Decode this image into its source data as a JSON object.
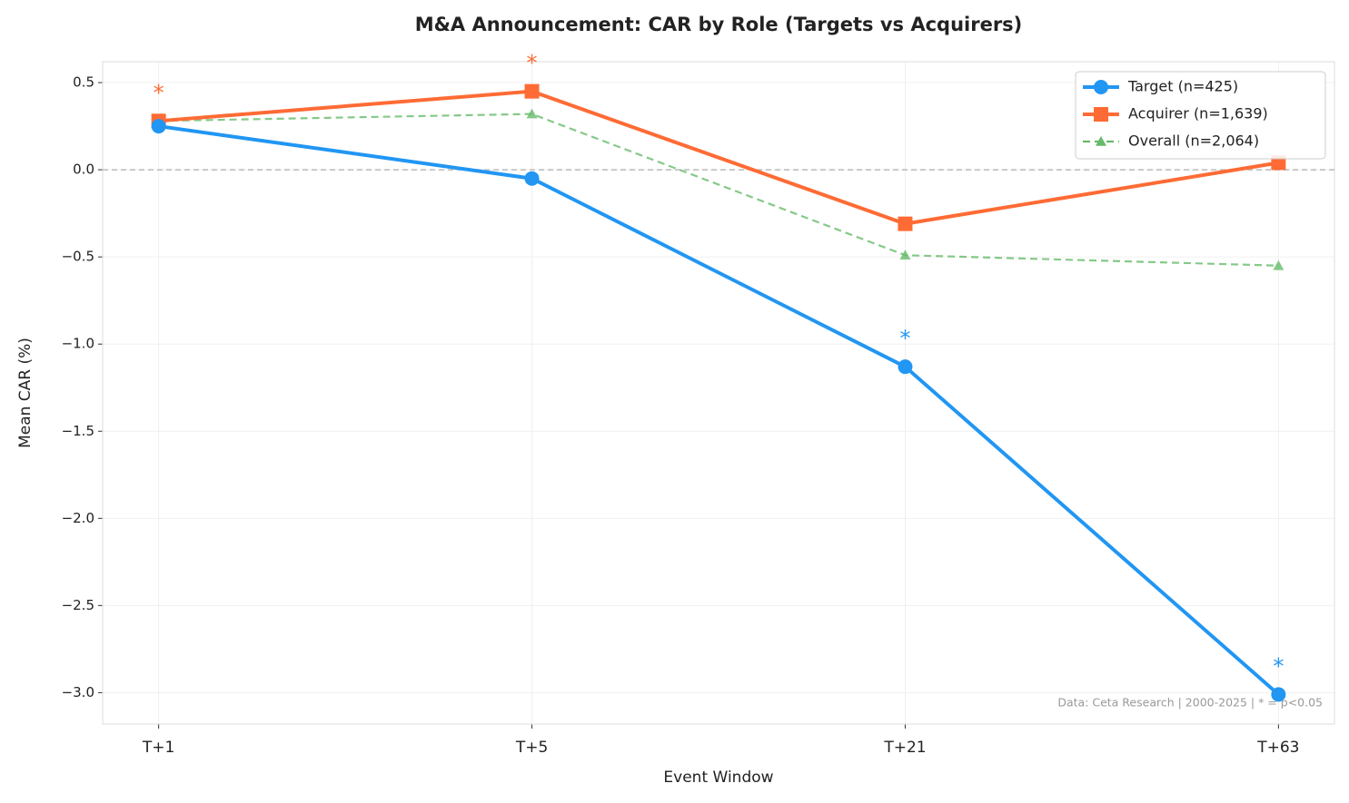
{
  "chart_data": {
    "type": "line",
    "title": "M&A Announcement: CAR by Role (Targets vs Acquirers)",
    "xlabel": "Event Window",
    "ylabel": "Mean CAR (%)",
    "footnote": "Data: Ceta Research | 2000-2025 | * = p<0.05",
    "categories": [
      "T+1",
      "T+5",
      "T+21",
      "T+63"
    ],
    "series": [
      {
        "name": "Target (n=425)",
        "color": "#2196f3",
        "marker": "circle",
        "dashed": false,
        "values": [
          0.25,
          -0.05,
          -1.13,
          -3.01
        ],
        "significance": [
          null,
          null,
          "*",
          "*"
        ]
      },
      {
        "name": "Acquirer (n=1,639)",
        "color": "#ff6b35",
        "marker": "square",
        "dashed": false,
        "values": [
          0.28,
          0.45,
          -0.31,
          0.04
        ],
        "significance": [
          "*",
          "*",
          null,
          null
        ]
      },
      {
        "name": "Overall (n=2,064)",
        "color": "#66bb6a",
        "marker": "triangle",
        "dashed": true,
        "values": [
          0.28,
          0.32,
          -0.49,
          -0.55
        ]
      }
    ],
    "ylim": [
      -3.18,
      0.62
    ],
    "yticks": [
      {
        "value": -3.0,
        "label": "−3.0"
      },
      {
        "value": -2.5,
        "label": "−2.5"
      },
      {
        "value": -2.0,
        "label": "−2.0"
      },
      {
        "value": -1.5,
        "label": "−1.5"
      },
      {
        "value": -1.0,
        "label": "−1.0"
      },
      {
        "value": -0.5,
        "label": "−0.5"
      },
      {
        "value": 0,
        "label": "0.0"
      },
      0.5
    ],
    "reference_line": 0,
    "grid": true,
    "legend": "upper right"
  }
}
